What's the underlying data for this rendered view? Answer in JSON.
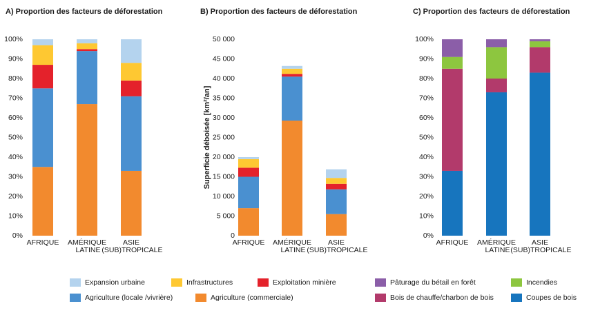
{
  "chart_data": [
    {
      "type": "bar",
      "stacked": true,
      "title": "A) Proportion des facteurs de déforestation",
      "categories": [
        "AFRIQUE",
        "AMÉRIQUE LATINE",
        "ASIE (SUB)TROPICALE"
      ],
      "series": [
        {
          "name": "Agriculture (commerciale)",
          "color": "#f28a2e",
          "values": [
            35,
            67,
            33
          ]
        },
        {
          "name": "Agriculture (locale /vivrière)",
          "color": "#4a90d0",
          "values": [
            40,
            27,
            38
          ]
        },
        {
          "name": "Exploitation minière",
          "color": "#e4222b",
          "values": [
            12,
            1,
            8
          ]
        },
        {
          "name": "Infrastructures",
          "color": "#fec832",
          "values": [
            10,
            3,
            9
          ]
        },
        {
          "name": "Expansion urbaine",
          "color": "#b4d3ee",
          "values": [
            3,
            2,
            12
          ]
        }
      ],
      "ylim": [
        0,
        100
      ],
      "yticks": [
        {
          "value": 0,
          "label": "0%"
        },
        {
          "value": 10,
          "label": "10%"
        },
        {
          "value": 20,
          "label": "20%"
        },
        {
          "value": 30,
          "label": "30%"
        },
        {
          "value": 40,
          "label": "40%"
        },
        {
          "value": 50,
          "label": "50%"
        },
        {
          "value": 60,
          "label": "60%"
        },
        {
          "value": 70,
          "label": "70%"
        },
        {
          "value": 80,
          "label": "80%"
        },
        {
          "value": 90,
          "label": "90%"
        },
        {
          "value": 100,
          "label": "100%"
        }
      ]
    },
    {
      "type": "bar",
      "stacked": true,
      "title": "B) Proportion des facteurs de déforestation",
      "ylabel": "Superficie déboisée [km²/an]",
      "categories": [
        "AFRIQUE",
        "AMÉRIQUE LATINE",
        "ASIE (SUB)TROPICALE"
      ],
      "series": [
        {
          "color": "#f28a2e",
          "values": [
            7000,
            29300,
            5500
          ]
        },
        {
          "color": "#4a90d0",
          "values": [
            8000,
            11200,
            6300
          ]
        },
        {
          "color": "#e4222b",
          "values": [
            2300,
            700,
            1400
          ]
        },
        {
          "color": "#fec832",
          "values": [
            2200,
            1300,
            1500
          ]
        },
        {
          "color": "#b4d3ee",
          "values": [
            500,
            700,
            2200
          ]
        }
      ],
      "ylim": [
        0,
        50000
      ],
      "yticks": [
        0,
        {
          "value": 5000,
          "label": "5 000"
        },
        {
          "value": 10000,
          "label": "10 000"
        },
        {
          "value": 15000,
          "label": "15 000"
        },
        {
          "value": 20000,
          "label": "20 000"
        },
        {
          "value": 25000,
          "label": "25 000"
        },
        {
          "value": 30000,
          "label": "30 000"
        },
        {
          "value": 35000,
          "label": "35 000"
        },
        {
          "value": 40000,
          "label": "40 000"
        },
        {
          "value": 45000,
          "label": "45 000"
        },
        {
          "value": 50000,
          "label": "50 000"
        }
      ]
    },
    {
      "type": "bar",
      "stacked": true,
      "title": "C) Proportion des facteurs de déforestation",
      "categories": [
        "AFRIQUE",
        "AMÉRIQUE LATINE",
        "ASIE (SUB)TROPICALE"
      ],
      "series": [
        {
          "name": "Coupes de bois",
          "color": "#1775be",
          "values": [
            33,
            73,
            83
          ]
        },
        {
          "name": "Bois de chauffe/charbon de bois",
          "color": "#b23a6b",
          "values": [
            52,
            7,
            13
          ]
        },
        {
          "name": "Incendies",
          "color": "#8dc63f",
          "values": [
            6,
            16,
            3
          ]
        },
        {
          "name": "Pâturage du bétail en forêt",
          "color": "#8b5ea8",
          "values": [
            9,
            4,
            1
          ]
        }
      ],
      "ylim": [
        0,
        100
      ],
      "yticks": [
        {
          "value": 0,
          "label": "0%"
        },
        {
          "value": 10,
          "label": "10%"
        },
        {
          "value": 20,
          "label": "20%"
        },
        {
          "value": 30,
          "label": "30%"
        },
        {
          "value": 40,
          "label": "40%"
        },
        {
          "value": 50,
          "label": "50%"
        },
        {
          "value": 60,
          "label": "60%"
        },
        {
          "value": 70,
          "label": "70%"
        },
        {
          "value": 80,
          "label": "80%"
        },
        {
          "value": 90,
          "label": "90%"
        },
        {
          "value": 100,
          "label": "100%"
        }
      ]
    }
  ]
}
